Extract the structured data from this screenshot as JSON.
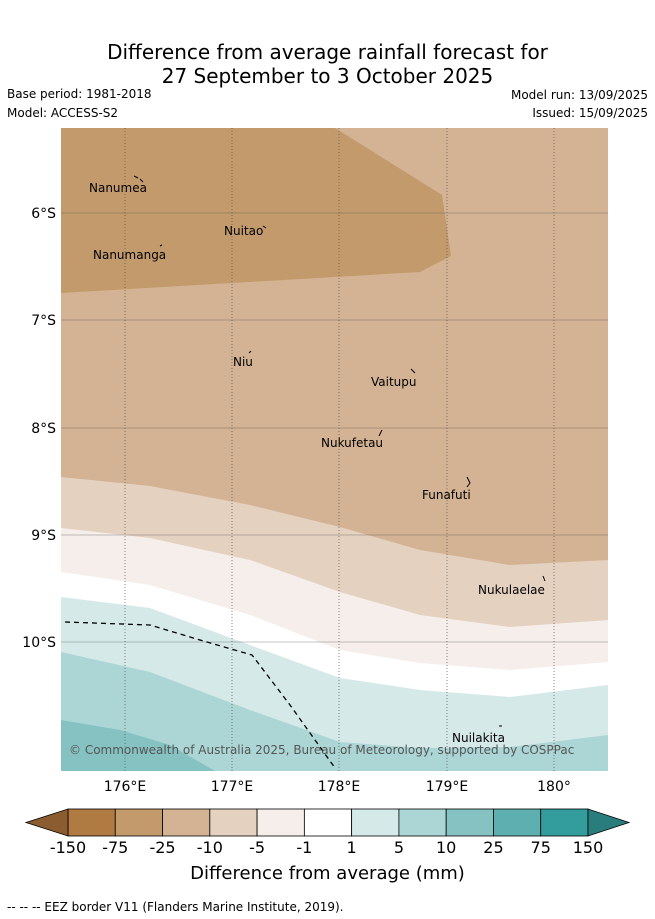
{
  "title_line1": "Difference from average rainfall forecast for",
  "title_line2": "27 September to 3 October 2025",
  "base_period": "Base period: 1981-2018",
  "model": "Model: ACCESS-S2",
  "model_run": "Model run: 13/09/2025",
  "issued": "Issued: 15/09/2025",
  "lat_ticks": [
    "6°S",
    "7°S",
    "8°S",
    "9°S",
    "10°S"
  ],
  "lon_ticks": [
    "176°E",
    "177°E",
    "178°E",
    "179°E",
    "180°"
  ],
  "places": [
    "Nanumea",
    "Nuitao",
    "Nanumanga",
    "Niu",
    "Vaitupu",
    "Nukufetau",
    "Funafuti",
    "Nukulaelae",
    "Nuilakita"
  ],
  "copyright": "© Commonwealth of Australia 2025, Bureau of Meteorology, supported by COSPPac",
  "colorbar": {
    "ticks": [
      "-150",
      "-75",
      "-25",
      "-10",
      "-5",
      "-1",
      "1",
      "5",
      "10",
      "25",
      "75",
      "150"
    ],
    "colors": [
      "#b07a43",
      "#c39a6c",
      "#d3b393",
      "#e4d1c0",
      "#f5eeea",
      "#ffffff",
      "#d6e9e9",
      "#acd6d6",
      "#86c2c2",
      "#5eafaf",
      "#339c9c"
    ],
    "low_extend": "#8a5c30",
    "high_extend": "#2a7d7d",
    "label": "Difference from average (mm)"
  },
  "footnote": "-- -- -- EEZ border V11 (Flanders Marine Institute, 2019)."
}
